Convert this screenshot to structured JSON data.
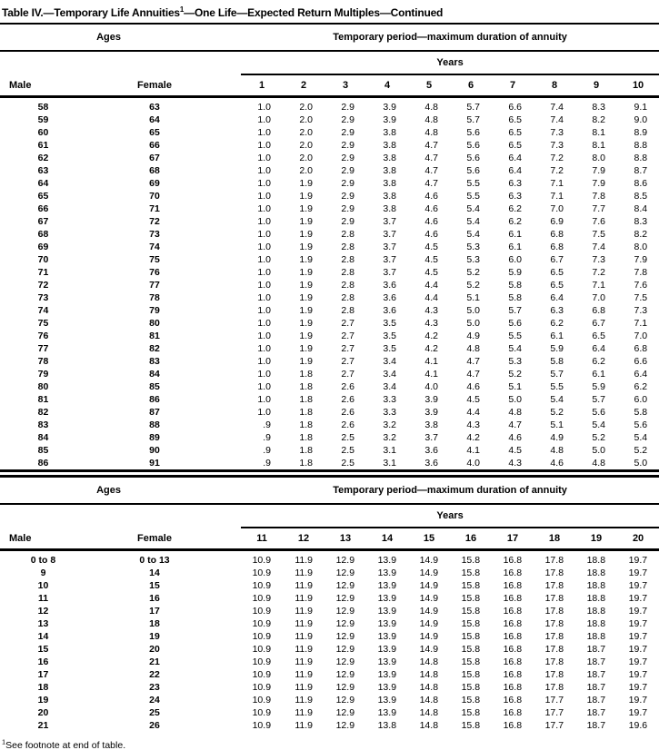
{
  "title": {
    "part1": "Table IV.—Temporary Life Annuities",
    "superscript": "1",
    "part2": "—One Life—Expected Return Multiples—Continued"
  },
  "footnote": {
    "superscript": "1",
    "text": "See footnote at end of table."
  },
  "sections": [
    {
      "ages_header": "Ages",
      "period_header": "Temporary period—maximum duration of annuity",
      "years_header": "Years",
      "male_header": "Male",
      "female_header": "Female",
      "year_columns": [
        "1",
        "2",
        "3",
        "4",
        "5",
        "6",
        "7",
        "8",
        "9",
        "10"
      ],
      "rows": [
        {
          "male": "58",
          "female": "63",
          "values": [
            "1.0",
            "2.0",
            "2.9",
            "3.9",
            "4.8",
            "5.7",
            "6.6",
            "7.4",
            "8.3",
            "9.1"
          ]
        },
        {
          "male": "59",
          "female": "64",
          "values": [
            "1.0",
            "2.0",
            "2.9",
            "3.9",
            "4.8",
            "5.7",
            "6.5",
            "7.4",
            "8.2",
            "9.0"
          ]
        },
        {
          "male": "60",
          "female": "65",
          "values": [
            "1.0",
            "2.0",
            "2.9",
            "3.8",
            "4.8",
            "5.6",
            "6.5",
            "7.3",
            "8.1",
            "8.9"
          ]
        },
        {
          "male": "61",
          "female": "66",
          "values": [
            "1.0",
            "2.0",
            "2.9",
            "3.8",
            "4.7",
            "5.6",
            "6.5",
            "7.3",
            "8.1",
            "8.8"
          ]
        },
        {
          "male": "62",
          "female": "67",
          "values": [
            "1.0",
            "2.0",
            "2.9",
            "3.8",
            "4.7",
            "5.6",
            "6.4",
            "7.2",
            "8.0",
            "8.8"
          ]
        },
        {
          "male": "63",
          "female": "68",
          "values": [
            "1.0",
            "2.0",
            "2.9",
            "3.8",
            "4.7",
            "5.6",
            "6.4",
            "7.2",
            "7.9",
            "8.7"
          ]
        },
        {
          "male": "64",
          "female": "69",
          "values": [
            "1.0",
            "1.9",
            "2.9",
            "3.8",
            "4.7",
            "5.5",
            "6.3",
            "7.1",
            "7.9",
            "8.6"
          ]
        },
        {
          "male": "65",
          "female": "70",
          "values": [
            "1.0",
            "1.9",
            "2.9",
            "3.8",
            "4.6",
            "5.5",
            "6.3",
            "7.1",
            "7.8",
            "8.5"
          ]
        },
        {
          "male": "66",
          "female": "71",
          "values": [
            "1.0",
            "1.9",
            "2.9",
            "3.8",
            "4.6",
            "5.4",
            "6.2",
            "7.0",
            "7.7",
            "8.4"
          ]
        },
        {
          "male": "67",
          "female": "72",
          "values": [
            "1.0",
            "1.9",
            "2.9",
            "3.7",
            "4.6",
            "5.4",
            "6.2",
            "6.9",
            "7.6",
            "8.3"
          ]
        },
        {
          "male": "68",
          "female": "73",
          "values": [
            "1.0",
            "1.9",
            "2.8",
            "3.7",
            "4.6",
            "5.4",
            "6.1",
            "6.8",
            "7.5",
            "8.2"
          ]
        },
        {
          "male": "69",
          "female": "74",
          "values": [
            "1.0",
            "1.9",
            "2.8",
            "3.7",
            "4.5",
            "5.3",
            "6.1",
            "6.8",
            "7.4",
            "8.0"
          ]
        },
        {
          "male": "70",
          "female": "75",
          "values": [
            "1.0",
            "1.9",
            "2.8",
            "3.7",
            "4.5",
            "5.3",
            "6.0",
            "6.7",
            "7.3",
            "7.9"
          ]
        },
        {
          "male": "71",
          "female": "76",
          "values": [
            "1.0",
            "1.9",
            "2.8",
            "3.7",
            "4.5",
            "5.2",
            "5.9",
            "6.5",
            "7.2",
            "7.8"
          ]
        },
        {
          "male": "72",
          "female": "77",
          "values": [
            "1.0",
            "1.9",
            "2.8",
            "3.6",
            "4.4",
            "5.2",
            "5.8",
            "6.5",
            "7.1",
            "7.6"
          ]
        },
        {
          "male": "73",
          "female": "78",
          "values": [
            "1.0",
            "1.9",
            "2.8",
            "3.6",
            "4.4",
            "5.1",
            "5.8",
            "6.4",
            "7.0",
            "7.5"
          ]
        },
        {
          "male": "74",
          "female": "79",
          "values": [
            "1.0",
            "1.9",
            "2.8",
            "3.6",
            "4.3",
            "5.0",
            "5.7",
            "6.3",
            "6.8",
            "7.3"
          ]
        },
        {
          "male": "75",
          "female": "80",
          "values": [
            "1.0",
            "1.9",
            "2.7",
            "3.5",
            "4.3",
            "5.0",
            "5.6",
            "6.2",
            "6.7",
            "7.1"
          ]
        },
        {
          "male": "76",
          "female": "81",
          "values": [
            "1.0",
            "1.9",
            "2.7",
            "3.5",
            "4.2",
            "4.9",
            "5.5",
            "6.1",
            "6.5",
            "7.0"
          ]
        },
        {
          "male": "77",
          "female": "82",
          "values": [
            "1.0",
            "1.9",
            "2.7",
            "3.5",
            "4.2",
            "4.8",
            "5.4",
            "5.9",
            "6.4",
            "6.8"
          ]
        },
        {
          "male": "78",
          "female": "83",
          "values": [
            "1.0",
            "1.9",
            "2.7",
            "3.4",
            "4.1",
            "4.7",
            "5.3",
            "5.8",
            "6.2",
            "6.6"
          ]
        },
        {
          "male": "79",
          "female": "84",
          "values": [
            "1.0",
            "1.8",
            "2.7",
            "3.4",
            "4.1",
            "4.7",
            "5.2",
            "5.7",
            "6.1",
            "6.4"
          ]
        },
        {
          "male": "80",
          "female": "85",
          "values": [
            "1.0",
            "1.8",
            "2.6",
            "3.4",
            "4.0",
            "4.6",
            "5.1",
            "5.5",
            "5.9",
            "6.2"
          ]
        },
        {
          "male": "81",
          "female": "86",
          "values": [
            "1.0",
            "1.8",
            "2.6",
            "3.3",
            "3.9",
            "4.5",
            "5.0",
            "5.4",
            "5.7",
            "6.0"
          ]
        },
        {
          "male": "82",
          "female": "87",
          "values": [
            "1.0",
            "1.8",
            "2.6",
            "3.3",
            "3.9",
            "4.4",
            "4.8",
            "5.2",
            "5.6",
            "5.8"
          ]
        },
        {
          "male": "83",
          "female": "88",
          "values": [
            ".9",
            "1.8",
            "2.6",
            "3.2",
            "3.8",
            "4.3",
            "4.7",
            "5.1",
            "5.4",
            "5.6"
          ]
        },
        {
          "male": "84",
          "female": "89",
          "values": [
            ".9",
            "1.8",
            "2.5",
            "3.2",
            "3.7",
            "4.2",
            "4.6",
            "4.9",
            "5.2",
            "5.4"
          ]
        },
        {
          "male": "85",
          "female": "90",
          "values": [
            ".9",
            "1.8",
            "2.5",
            "3.1",
            "3.6",
            "4.1",
            "4.5",
            "4.8",
            "5.0",
            "5.2"
          ]
        },
        {
          "male": "86",
          "female": "91",
          "values": [
            ".9",
            "1.8",
            "2.5",
            "3.1",
            "3.6",
            "4.0",
            "4.3",
            "4.6",
            "4.8",
            "5.0"
          ]
        }
      ]
    },
    {
      "ages_header": "Ages",
      "period_header": "Temporary period—maximum duration of annuity",
      "years_header": "Years",
      "male_header": "Male",
      "female_header": "Female",
      "year_columns": [
        "11",
        "12",
        "13",
        "14",
        "15",
        "16",
        "17",
        "18",
        "19",
        "20"
      ],
      "rows": [
        {
          "male": "0 to 8",
          "female": "0 to 13",
          "values": [
            "10.9",
            "11.9",
            "12.9",
            "13.9",
            "14.9",
            "15.8",
            "16.8",
            "17.8",
            "18.8",
            "19.7"
          ]
        },
        {
          "male": "9",
          "female": "14",
          "values": [
            "10.9",
            "11.9",
            "12.9",
            "13.9",
            "14.9",
            "15.8",
            "16.8",
            "17.8",
            "18.8",
            "19.7"
          ]
        },
        {
          "male": "10",
          "female": "15",
          "values": [
            "10.9",
            "11.9",
            "12.9",
            "13.9",
            "14.9",
            "15.8",
            "16.8",
            "17.8",
            "18.8",
            "19.7"
          ]
        },
        {
          "male": "11",
          "female": "16",
          "values": [
            "10.9",
            "11.9",
            "12.9",
            "13.9",
            "14.9",
            "15.8",
            "16.8",
            "17.8",
            "18.8",
            "19.7"
          ]
        },
        {
          "male": "12",
          "female": "17",
          "values": [
            "10.9",
            "11.9",
            "12.9",
            "13.9",
            "14.9",
            "15.8",
            "16.8",
            "17.8",
            "18.8",
            "19.7"
          ]
        },
        {
          "male": "13",
          "female": "18",
          "values": [
            "10.9",
            "11.9",
            "12.9",
            "13.9",
            "14.9",
            "15.8",
            "16.8",
            "17.8",
            "18.8",
            "19.7"
          ]
        },
        {
          "male": "14",
          "female": "19",
          "values": [
            "10.9",
            "11.9",
            "12.9",
            "13.9",
            "14.9",
            "15.8",
            "16.8",
            "17.8",
            "18.8",
            "19.7"
          ]
        },
        {
          "male": "15",
          "female": "20",
          "values": [
            "10.9",
            "11.9",
            "12.9",
            "13.9",
            "14.9",
            "15.8",
            "16.8",
            "17.8",
            "18.7",
            "19.7"
          ]
        },
        {
          "male": "16",
          "female": "21",
          "values": [
            "10.9",
            "11.9",
            "12.9",
            "13.9",
            "14.8",
            "15.8",
            "16.8",
            "17.8",
            "18.7",
            "19.7"
          ]
        },
        {
          "male": "17",
          "female": "22",
          "values": [
            "10.9",
            "11.9",
            "12.9",
            "13.9",
            "14.8",
            "15.8",
            "16.8",
            "17.8",
            "18.7",
            "19.7"
          ]
        },
        {
          "male": "18",
          "female": "23",
          "values": [
            "10.9",
            "11.9",
            "12.9",
            "13.9",
            "14.8",
            "15.8",
            "16.8",
            "17.8",
            "18.7",
            "19.7"
          ]
        },
        {
          "male": "19",
          "female": "24",
          "values": [
            "10.9",
            "11.9",
            "12.9",
            "13.9",
            "14.8",
            "15.8",
            "16.8",
            "17.7",
            "18.7",
            "19.7"
          ]
        },
        {
          "male": "20",
          "female": "25",
          "values": [
            "10.9",
            "11.9",
            "12.9",
            "13.9",
            "14.8",
            "15.8",
            "16.8",
            "17.7",
            "18.7",
            "19.7"
          ]
        },
        {
          "male": "21",
          "female": "26",
          "values": [
            "10.9",
            "11.9",
            "12.9",
            "13.8",
            "14.8",
            "15.8",
            "16.8",
            "17.7",
            "18.7",
            "19.6"
          ]
        }
      ]
    }
  ]
}
